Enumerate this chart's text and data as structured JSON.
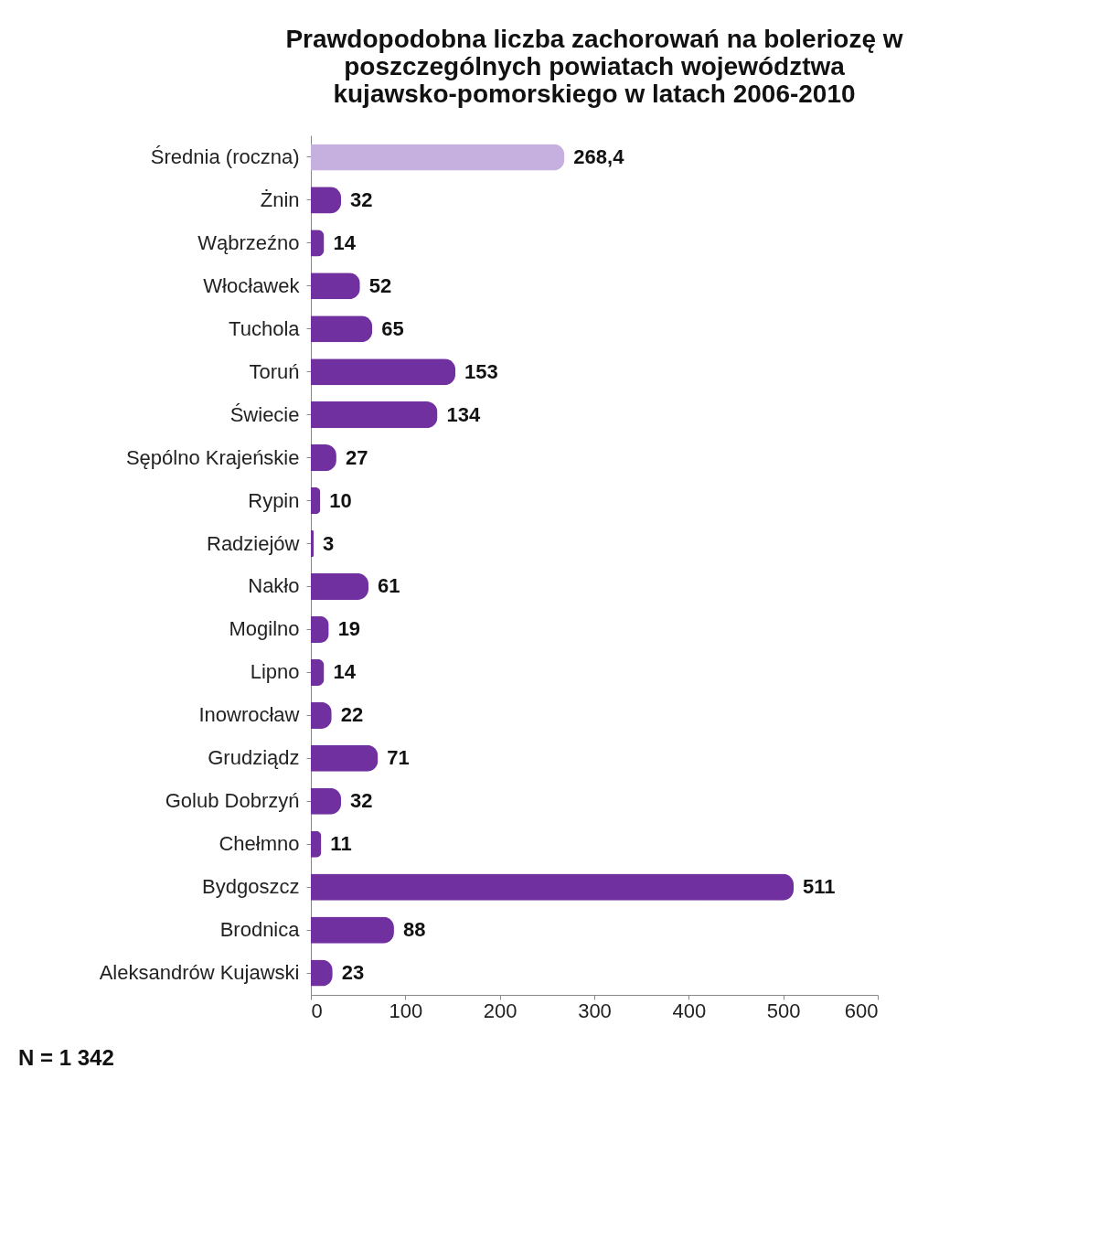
{
  "chart_data": {
    "type": "bar",
    "orientation": "horizontal",
    "title": [
      "Prawdopodobna  liczba zachorowań na boleriozę w",
      "poszczególnych powiatach województwa",
      "kujawsko-pomorskiego w latach 2006-2010"
    ],
    "categories": [
      "Średnia (roczna)",
      "Żnin",
      "Wąbrzeźno",
      "Włocławek",
      "Tuchola",
      "Toruń",
      "Świecie",
      "Sępólno Krajeńskie",
      "Rypin",
      "Radziejów",
      "Nakło",
      "Mogilno",
      "Lipno",
      "Inowrocław",
      "Grudziądz",
      "Golub Dobrzyń",
      "Chełmno",
      "Bydgoszcz",
      "Brodnica",
      "Aleksandrów Kujawski"
    ],
    "values": [
      268.4,
      32,
      14,
      52,
      65,
      153,
      134,
      27,
      10,
      3,
      61,
      19,
      14,
      22,
      71,
      32,
      11,
      511,
      88,
      23
    ],
    "value_labels": [
      "268,4",
      "32",
      "14",
      "52",
      "65",
      "153",
      "134",
      "27",
      "10",
      "3",
      "61",
      "19",
      "14",
      "22",
      "71",
      "32",
      "11",
      "511",
      "88",
      "23"
    ],
    "colors": [
      "#c5b0e0",
      "#7030a0",
      "#7030a0",
      "#7030a0",
      "#7030a0",
      "#7030a0",
      "#7030a0",
      "#7030a0",
      "#7030a0",
      "#7030a0",
      "#7030a0",
      "#7030a0",
      "#7030a0",
      "#7030a0",
      "#7030a0",
      "#7030a0",
      "#7030a0",
      "#7030a0",
      "#7030a0",
      "#7030a0"
    ],
    "xlim": [
      0,
      600
    ],
    "xticks": [
      0,
      100,
      200,
      300,
      400,
      500,
      600
    ],
    "grid": false,
    "annotations": [
      "N = 1 342"
    ]
  }
}
